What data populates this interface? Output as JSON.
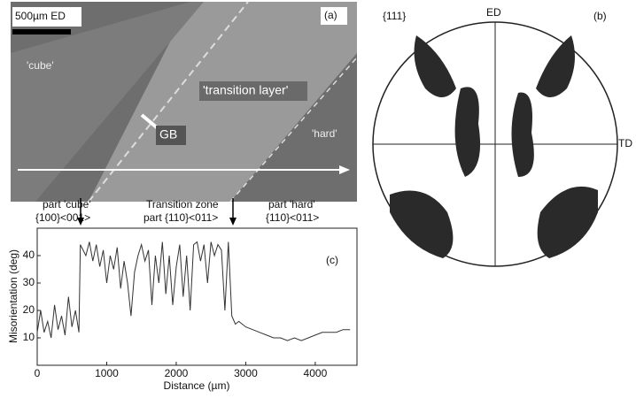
{
  "panel_a": {
    "scale_bar": "500µm ED",
    "label": "(a)",
    "cube": "'cube'",
    "transition": "'transition layer'",
    "gb": "GB",
    "hard": "'hard'"
  },
  "panel_b": {
    "pole": "{111}",
    "ed": "ED",
    "label": "(b)",
    "td": "TD"
  },
  "chart_data": {
    "type": "line",
    "label": "(c)",
    "annotations": [
      "part 'cube'",
      "{100}<001>",
      "Transition zone",
      "part {110}<011>",
      "part 'hard'",
      "{110}<011>"
    ],
    "x_label": "Distance (µm)",
    "y_label": "Misorientation (deg)",
    "x": [
      0,
      50,
      100,
      150,
      200,
      250,
      300,
      350,
      400,
      450,
      500,
      550,
      600,
      620,
      700,
      750,
      800,
      850,
      900,
      950,
      1000,
      1050,
      1100,
      1150,
      1200,
      1250,
      1300,
      1350,
      1400,
      1450,
      1500,
      1550,
      1600,
      1650,
      1700,
      1750,
      1800,
      1850,
      1900,
      1950,
      2000,
      2050,
      2100,
      2150,
      2200,
      2250,
      2300,
      2350,
      2400,
      2450,
      2500,
      2550,
      2600,
      2650,
      2700,
      2750,
      2800,
      2850,
      2900,
      3000,
      3100,
      3200,
      3300,
      3400,
      3500,
      3600,
      3700,
      3800,
      3900,
      4000,
      4100,
      4200,
      4300,
      4400,
      4500
    ],
    "values": [
      12,
      20,
      12,
      16,
      10,
      22,
      13,
      18,
      11,
      25,
      14,
      20,
      12,
      44,
      40,
      45,
      38,
      44,
      36,
      42,
      30,
      40,
      35,
      43,
      28,
      38,
      30,
      18,
      34,
      40,
      44,
      38,
      42,
      22,
      40,
      30,
      45,
      26,
      40,
      22,
      36,
      44,
      25,
      40,
      20,
      44,
      45,
      38,
      44,
      30,
      45,
      40,
      44,
      42,
      20,
      45,
      18,
      15,
      16,
      14,
      13,
      12,
      11,
      10,
      10,
      9,
      10,
      9,
      10,
      11,
      12,
      12,
      12,
      13,
      13
    ],
    "color": "#333333",
    "xlim": [
      0,
      4600
    ],
    "ylim": [
      0,
      50
    ],
    "xticks": [
      0,
      1000,
      2000,
      3000,
      4000
    ],
    "yticks": [
      10,
      20,
      30,
      40
    ]
  }
}
